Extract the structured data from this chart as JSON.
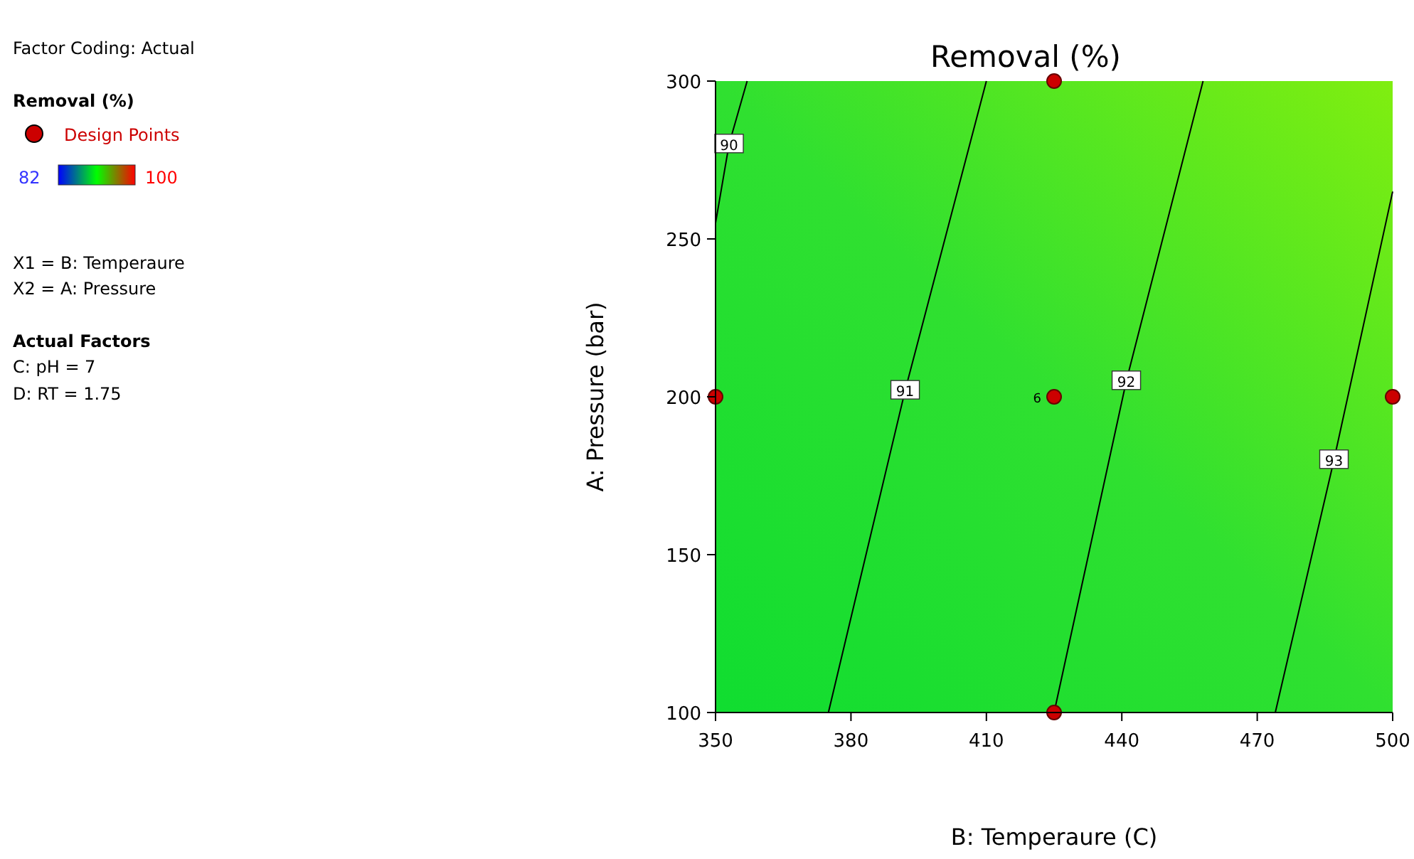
{
  "chart_data": {
    "type": "line",
    "title": "Removal (%)",
    "xlabel": "B: Temperaure (C)",
    "ylabel": "A: Pressure (bar)",
    "legend_title": "Removal (%)",
    "legend": "left",
    "xlim": [
      350,
      500
    ],
    "xticks": [
      350,
      380,
      410,
      440,
      470,
      500
    ],
    "ylim": [
      100,
      300
    ],
    "yticks": [
      100,
      150,
      200,
      250,
      300
    ],
    "series": [
      {
        "name": "90",
        "color": "#000000",
        "x": [
          350,
          353,
          357
        ],
        "values": [
          255,
          280,
          300
        ]
      },
      {
        "name": "91",
        "color": "#000000",
        "x": [
          375,
          392,
          410
        ],
        "values": [
          100,
          202,
          300
        ]
      },
      {
        "name": "92",
        "color": "#000000",
        "x": [
          425,
          441,
          458
        ],
        "values": [
          100,
          205,
          300
        ]
      },
      {
        "name": "93",
        "color": "#000000",
        "x": [
          474,
          487,
          500
        ],
        "values": [
          100,
          180,
          265
        ]
      },
      {
        "name": "Design Points",
        "type": "scatter",
        "color": "#cc0000",
        "marker": "circle",
        "x": [
          350,
          425,
          425,
          425,
          500
        ],
        "values": [
          200,
          300,
          200,
          100,
          200
        ]
      }
    ],
    "annotations": [
      {
        "text": "6",
        "x": 425,
        "y": 200
      },
      "Factor Coding: Actual",
      "82",
      "100",
      "X1 = B: Temperaure",
      "X2 = A: Pressure",
      "Actual Factors",
      "C: pH = 7",
      "D: RT = 1.75"
    ]
  }
}
